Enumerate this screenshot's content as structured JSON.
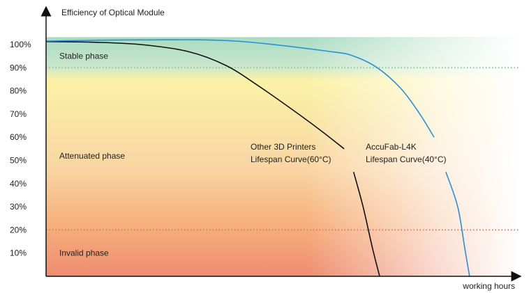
{
  "chart_data": {
    "type": "line",
    "ylabel": "Efficiency of Optical Module",
    "xlabel": "working hours",
    "yticks": [
      "100%",
      "90%",
      "80%",
      "70%",
      "60%",
      "50%",
      "40%",
      "30%",
      "20%",
      "10%"
    ],
    "ytick_values": [
      100,
      90,
      80,
      70,
      60,
      50,
      40,
      30,
      20,
      10
    ],
    "ylim": [
      0,
      102
    ],
    "xlim": [
      0,
      100
    ],
    "grid": false,
    "thresholds": [
      {
        "value": 90,
        "color": "#7fc9a0"
      },
      {
        "value": 20,
        "color": "#e07860"
      }
    ],
    "phases": [
      {
        "label": "Stable phase",
        "y": 95
      },
      {
        "label": "Attenuated phase",
        "y": 52
      },
      {
        "label": "Invalid phase",
        "y": 10
      }
    ],
    "series": [
      {
        "name": "Other 3D Printers",
        "label_lines": [
          "Other 3D Printers",
          "Lifespan Curve(60°C)"
        ],
        "color": "#111111",
        "x": [
          0,
          10,
          20,
          30,
          38,
          45,
          52,
          58,
          63
        ],
        "y": [
          101.3,
          101,
          100,
          97,
          91,
          82,
          72,
          63,
          55
        ],
        "x2": [
          65,
          67,
          69,
          70.5
        ],
        "y2": [
          45,
          30,
          12,
          0
        ]
      },
      {
        "name": "AccuFab-L4K",
        "label_lines": [
          "AccuFab-L4K",
          "Lifespan Curve(40°C)"
        ],
        "color": "#2b8fd6",
        "x": [
          0,
          20,
          40,
          60,
          65,
          70,
          75,
          79,
          82
        ],
        "y": [
          101.5,
          102,
          101.5,
          97,
          95,
          90,
          81,
          70,
          60
        ],
        "x2": [
          84.5,
          87,
          88.5,
          89.5
        ],
        "y2": [
          45,
          30,
          12,
          0
        ]
      }
    ]
  }
}
